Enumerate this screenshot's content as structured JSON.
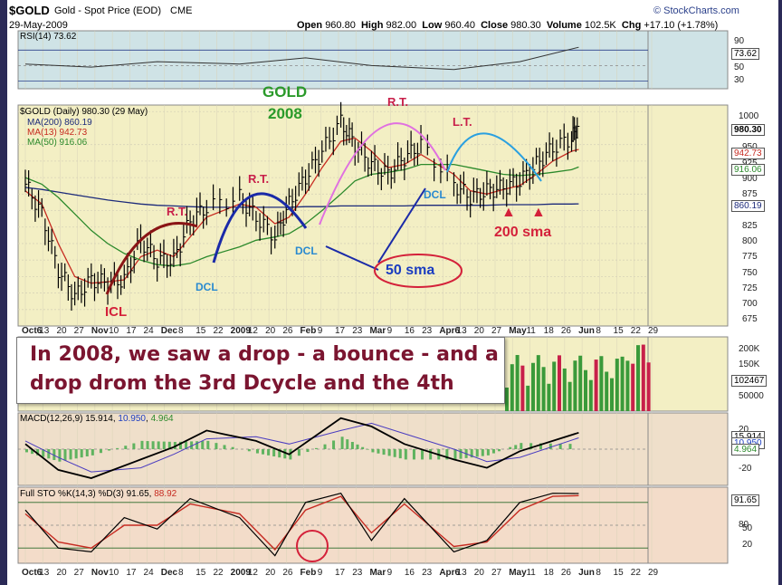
{
  "header": {
    "symbol": "$GOLD",
    "name": "Gold - Spot Price (EOD)",
    "exchange": "CME",
    "date": "29-May-2009",
    "watermark": "© StockCharts.com",
    "stats": {
      "open_label": "Open",
      "open": "960.80",
      "high_label": "High",
      "high": "982.00",
      "low_label": "Low",
      "low": "960.40",
      "close_label": "Close",
      "close": "980.30",
      "volume_label": "Volume",
      "volume": "102.5K",
      "chg_label": "Chg",
      "chg": "+17.10 (+1.78%)"
    }
  },
  "colors": {
    "background": "#ffffff",
    "frame": "#2b2a57",
    "rsi_bg": "#cfe3e6",
    "price_bg": "#f3efc4",
    "vol_bg": "#f3efc4",
    "macd_bg": "#efdfca",
    "sto_bg": "#f3dcc9",
    "bars": "#000000",
    "ma200": "#1c2a7a",
    "ma13": "#c62a20",
    "ma50": "#2c8a2c",
    "volume_bars": "#3a9a3a",
    "volume_bars_highlight": "#c8204a",
    "annotation_red": "#d4213a",
    "annotation_blue": "#1a3cc0",
    "annotation_magenta": "#e060e0",
    "annotation_cyan": "#2aa0e0",
    "callout_text": "#7b1530"
  },
  "panels": {
    "rsi": {
      "label": "RSI(14)",
      "value": "73.62",
      "ticks": [
        "90",
        "70",
        "50",
        "30"
      ],
      "tag": "73.62"
    },
    "price": {
      "label": "$GOLD (Daily) 980.30 (29 May)",
      "legend": [
        {
          "label": "MA(200) 860.19",
          "color": "#1c2a7a"
        },
        {
          "label": "MA(13) 942.73",
          "color": "#c62a20"
        },
        {
          "label": "MA(50) 916.06",
          "color": "#2c8a2c"
        }
      ],
      "ticks": [
        "1000",
        "950",
        "925",
        "900",
        "875",
        "850",
        "825",
        "800",
        "775",
        "750",
        "725",
        "700",
        "675"
      ],
      "tags": [
        "980.30",
        "942.73",
        "916.06",
        "860.19"
      ]
    },
    "volume": {
      "ticks": [
        "200K",
        "150K",
        "50000"
      ],
      "tag": "102467"
    },
    "macd": {
      "label": "MACD(12,26,9)",
      "macd": "15.914",
      "signal": "10.950",
      "hist": "4.964",
      "ticks": [
        "20",
        "0",
        "-20"
      ],
      "tags": [
        "15.914",
        "10.950",
        "4.964"
      ]
    },
    "sto": {
      "label": "Full STO %K(14,3) %D(3)",
      "k": "91.65",
      "d": "88.92",
      "ticks": [
        "80",
        "50",
        "20"
      ],
      "tag": "91.65"
    }
  },
  "annotations": {
    "gold": "GOLD",
    "year": "2008",
    "rt1": "R.T.",
    "rt2": "R.T.",
    "rt3": "R.T.",
    "lt": "L.T.",
    "icl": "ICL",
    "dcl1": "DCL",
    "dcl2": "DCL",
    "dcl3": "DCL",
    "sma50": "50 sma",
    "sma200": "200 sma"
  },
  "callout": {
    "line1": "In 2008, we saw a drop - a bounce - and a",
    "line2": "drop drom the 3rd Dcycle and the 4th"
  },
  "x_axis": [
    "Oct6",
    "13",
    "20",
    "27",
    "Nov",
    "10",
    "17",
    "24",
    "Dec",
    "8",
    "15",
    "22",
    "2009",
    "12",
    "20",
    "26",
    "Feb",
    "9",
    "17",
    "23",
    "Mar",
    "9",
    "16",
    "23",
    "Apr6",
    "13",
    "20",
    "27",
    "May",
    "11",
    "18",
    "26",
    "Jun",
    "8",
    "15",
    "22",
    "29"
  ],
  "chart_data": [
    {
      "type": "line",
      "title": "$GOLD (Daily) 980.30 (29 May)",
      "ylim": [
        675,
        1010
      ],
      "x": [
        "2008-10-06",
        "2008-10-13",
        "2008-10-20",
        "2008-10-27",
        "2008-11-03",
        "2008-11-10",
        "2008-11-17",
        "2008-11-24",
        "2008-12-01",
        "2008-12-08",
        "2008-12-15",
        "2008-12-22",
        "2009-01-05",
        "2009-01-12",
        "2009-01-20",
        "2009-01-26",
        "2009-02-02",
        "2009-02-09",
        "2009-02-17",
        "2009-02-23",
        "2009-03-02",
        "2009-03-09",
        "2009-03-16",
        "2009-03-23",
        "2009-04-06",
        "2009-04-13",
        "2009-04-20",
        "2009-04-27",
        "2009-05-04",
        "2009-05-11",
        "2009-05-18",
        "2009-05-26",
        "2009-05-29"
      ],
      "series": [
        {
          "name": "$GOLD",
          "values": [
            890,
            845,
            760,
            720,
            745,
            740,
            745,
            805,
            775,
            775,
            835,
            855,
            870,
            840,
            810,
            860,
            900,
            940,
            985,
            950,
            920,
            905,
            930,
            950,
            890,
            870,
            880,
            885,
            895,
            920,
            945,
            960,
            980.3
          ]
        },
        {
          "name": "MA(200)",
          "values": [
            885,
            882,
            878,
            874,
            870,
            866,
            863,
            860,
            858,
            857,
            856,
            855,
            855,
            855,
            855,
            855,
            856,
            856,
            857,
            857,
            857,
            857,
            857,
            858,
            858,
            858,
            858,
            859,
            859,
            859,
            860,
            860,
            860.19
          ]
        },
        {
          "name": "MA(13)",
          "values": [
            880,
            860,
            800,
            750,
            740,
            742,
            745,
            780,
            790,
            780,
            810,
            840,
            860,
            855,
            830,
            840,
            875,
            915,
            955,
            960,
            940,
            915,
            920,
            935,
            905,
            880,
            875,
            882,
            888,
            905,
            925,
            940,
            942.73
          ]
        },
        {
          "name": "MA(50)",
          "values": [
            900,
            890,
            870,
            845,
            820,
            800,
            785,
            775,
            768,
            766,
            770,
            780,
            795,
            805,
            810,
            815,
            830,
            850,
            875,
            895,
            905,
            908,
            912,
            920,
            920,
            915,
            910,
            905,
            903,
            905,
            908,
            912,
            916.06
          ]
        }
      ]
    },
    {
      "type": "line",
      "title": "RSI(14)",
      "ylim": [
        20,
        95
      ],
      "x": [
        "2008-10-06",
        "2008-11-03",
        "2008-12-01",
        "2009-01-05",
        "2009-02-02",
        "2009-03-02",
        "2009-04-06",
        "2009-05-04",
        "2009-05-29"
      ],
      "series": [
        {
          "name": "RSI(14)",
          "values": [
            52,
            48,
            55,
            52,
            60,
            50,
            45,
            55,
            73.62
          ]
        }
      ]
    },
    {
      "type": "line",
      "title": "MACD(12,26,9)",
      "ylim": [
        -35,
        35
      ],
      "x": [
        "2008-10-06",
        "2008-10-20",
        "2008-11-03",
        "2008-11-24",
        "2008-12-08",
        "2008-12-22",
        "2009-01-12",
        "2009-01-26",
        "2009-02-17",
        "2009-03-02",
        "2009-03-16",
        "2009-04-06",
        "2009-04-20",
        "2009-05-04",
        "2009-05-29"
      ],
      "series": [
        {
          "name": "MACD",
          "values": [
            5,
            -20,
            -28,
            -10,
            2,
            18,
            8,
            -5,
            30,
            22,
            5,
            -10,
            -18,
            -2,
            15.914
          ]
        },
        {
          "name": "Signal",
          "values": [
            8,
            -8,
            -22,
            -18,
            -5,
            10,
            12,
            5,
            18,
            25,
            15,
            0,
            -12,
            -8,
            10.95
          ]
        }
      ]
    },
    {
      "type": "line",
      "title": "Full STO %K(14,3) %D(3)",
      "ylim": [
        0,
        100
      ],
      "x": [
        "2008-10-06",
        "2008-10-20",
        "2008-11-03",
        "2008-11-17",
        "2008-12-01",
        "2008-12-15",
        "2009-01-05",
        "2009-01-20",
        "2009-02-02",
        "2009-02-17",
        "2009-03-02",
        "2009-03-16",
        "2009-04-06",
        "2009-04-20",
        "2009-05-04",
        "2009-05-18",
        "2009-05-29"
      ],
      "series": [
        {
          "name": "%K",
          "values": [
            70,
            20,
            15,
            60,
            45,
            85,
            60,
            10,
            80,
            92,
            30,
            85,
            15,
            30,
            80,
            92,
            91.65
          ]
        },
        {
          "name": "%D",
          "values": [
            65,
            28,
            20,
            50,
            50,
            78,
            65,
            18,
            70,
            88,
            40,
            78,
            22,
            28,
            70,
            88,
            88.92
          ]
        }
      ]
    }
  ]
}
